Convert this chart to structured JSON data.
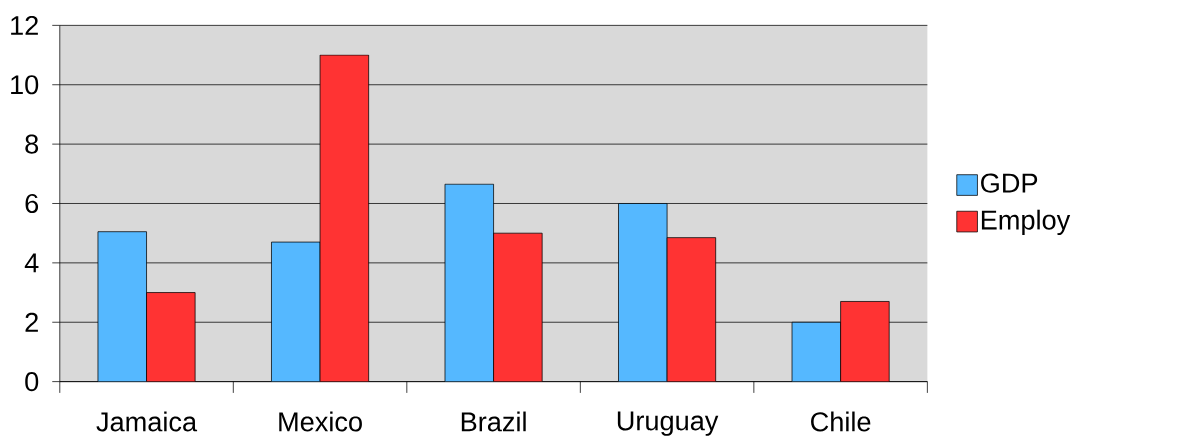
{
  "chart_data": {
    "type": "bar",
    "categories": [
      "Jamaica",
      "Mexico",
      "Brazil",
      "Uruguay",
      "Chile"
    ],
    "series": [
      {
        "name": "GDP",
        "color": "#55b8ff",
        "values": [
          5.05,
          4.7,
          6.65,
          6.0,
          2.0
        ]
      },
      {
        "name": "Employ",
        "color": "#ff3333",
        "values": [
          3.0,
          11.0,
          5.0,
          4.85,
          2.7
        ]
      }
    ],
    "ylim": [
      0,
      12
    ],
    "yticks": [
      0,
      2,
      4,
      6,
      8,
      10,
      12
    ],
    "grid": "y",
    "legend": "right"
  }
}
